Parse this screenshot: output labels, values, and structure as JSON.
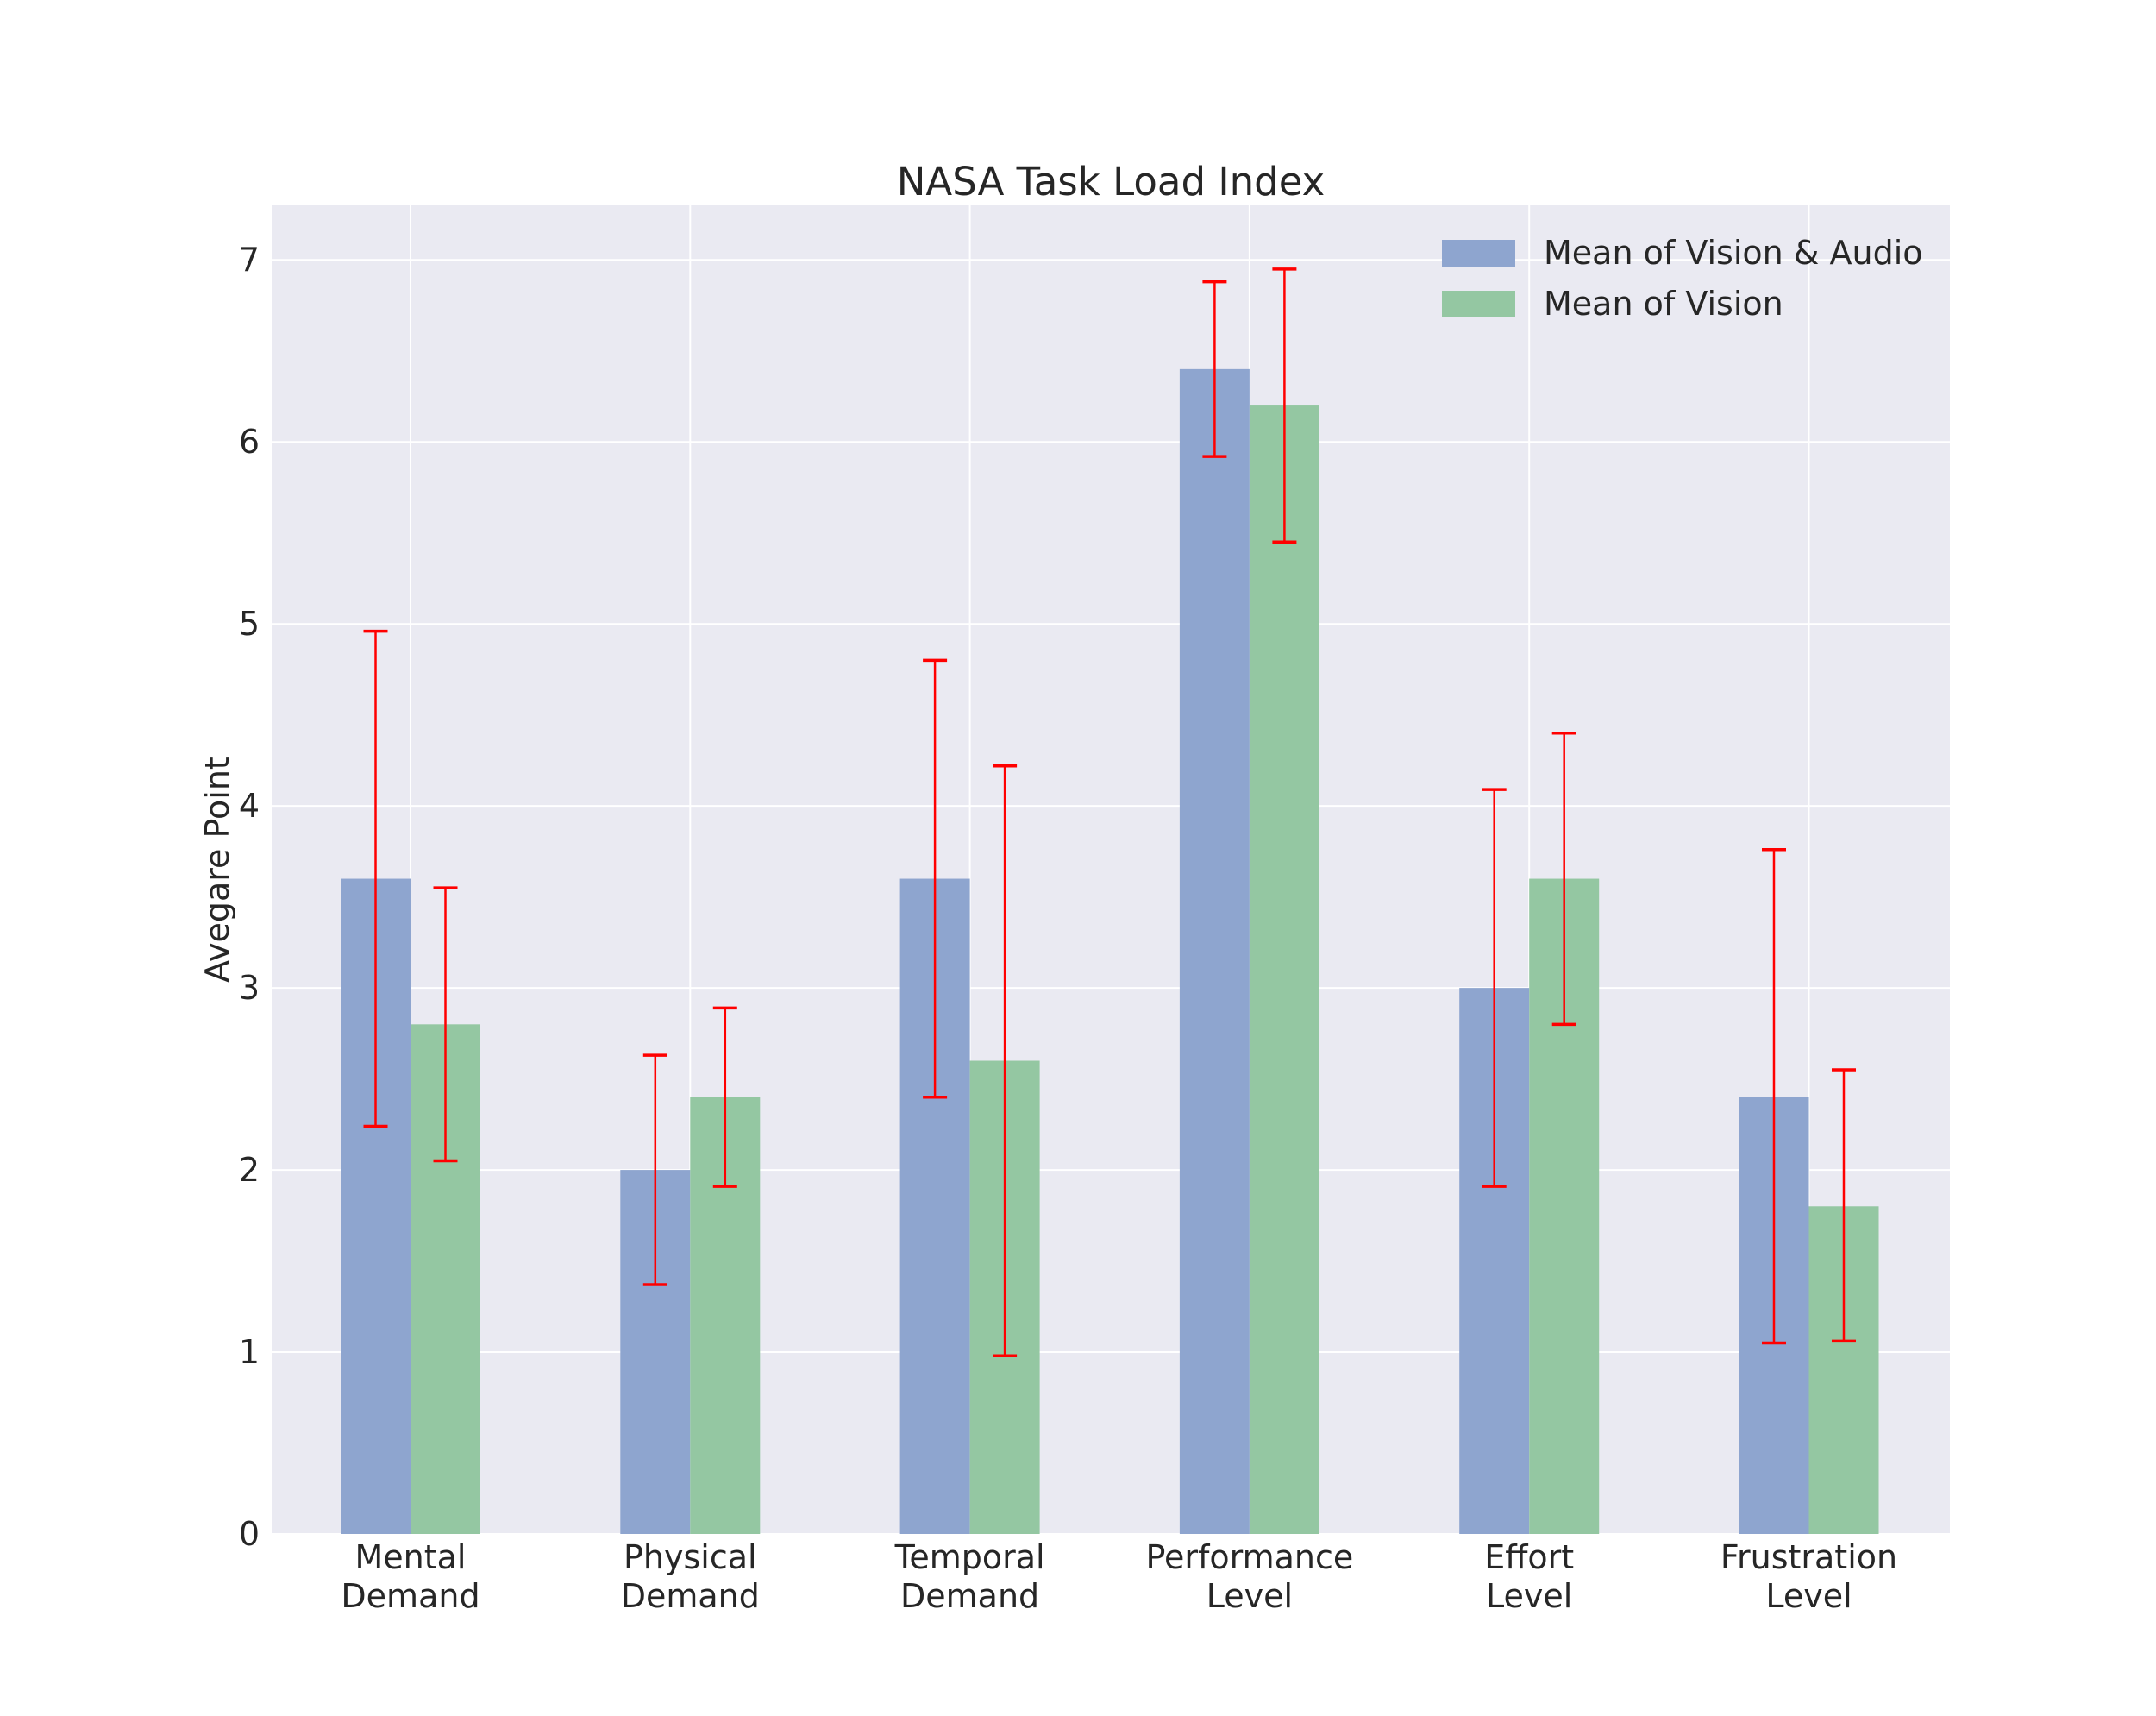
{
  "chart_data": {
    "type": "bar",
    "title": "NASA Task Load Index",
    "xlabel": "",
    "ylabel": "Avegare Point",
    "categories": [
      [
        "Mental",
        "Demand"
      ],
      [
        "Physical",
        "Demand"
      ],
      [
        "Temporal",
        "Demand"
      ],
      [
        "Performance",
        "Level"
      ],
      [
        "Effort",
        "Level"
      ],
      [
        "Frustration",
        "Level"
      ]
    ],
    "series": [
      {
        "name": "Mean of Vision & Audio",
        "color": "#8ea5cf",
        "values": [
          3.6,
          2.0,
          3.6,
          6.4,
          3.0,
          2.4
        ],
        "error_low": [
          2.24,
          1.37,
          2.4,
          5.92,
          1.91,
          1.05
        ],
        "error_high": [
          4.96,
          2.63,
          4.8,
          6.88,
          4.09,
          3.76
        ]
      },
      {
        "name": "Mean of Vision",
        "color": "#94c7a2",
        "values": [
          2.8,
          2.4,
          2.6,
          6.2,
          3.6,
          1.8
        ],
        "error_low": [
          2.05,
          1.91,
          0.98,
          5.45,
          2.8,
          1.06
        ],
        "error_high": [
          3.55,
          2.89,
          4.22,
          6.95,
          4.4,
          2.55
        ]
      }
    ],
    "error_color": "#ff0000",
    "ylim": [
      0,
      7.3
    ],
    "yticks": [
      0,
      1,
      2,
      3,
      4,
      5,
      6,
      7
    ],
    "grid": true,
    "legend": "top-right",
    "background": "#eaeaf2"
  }
}
